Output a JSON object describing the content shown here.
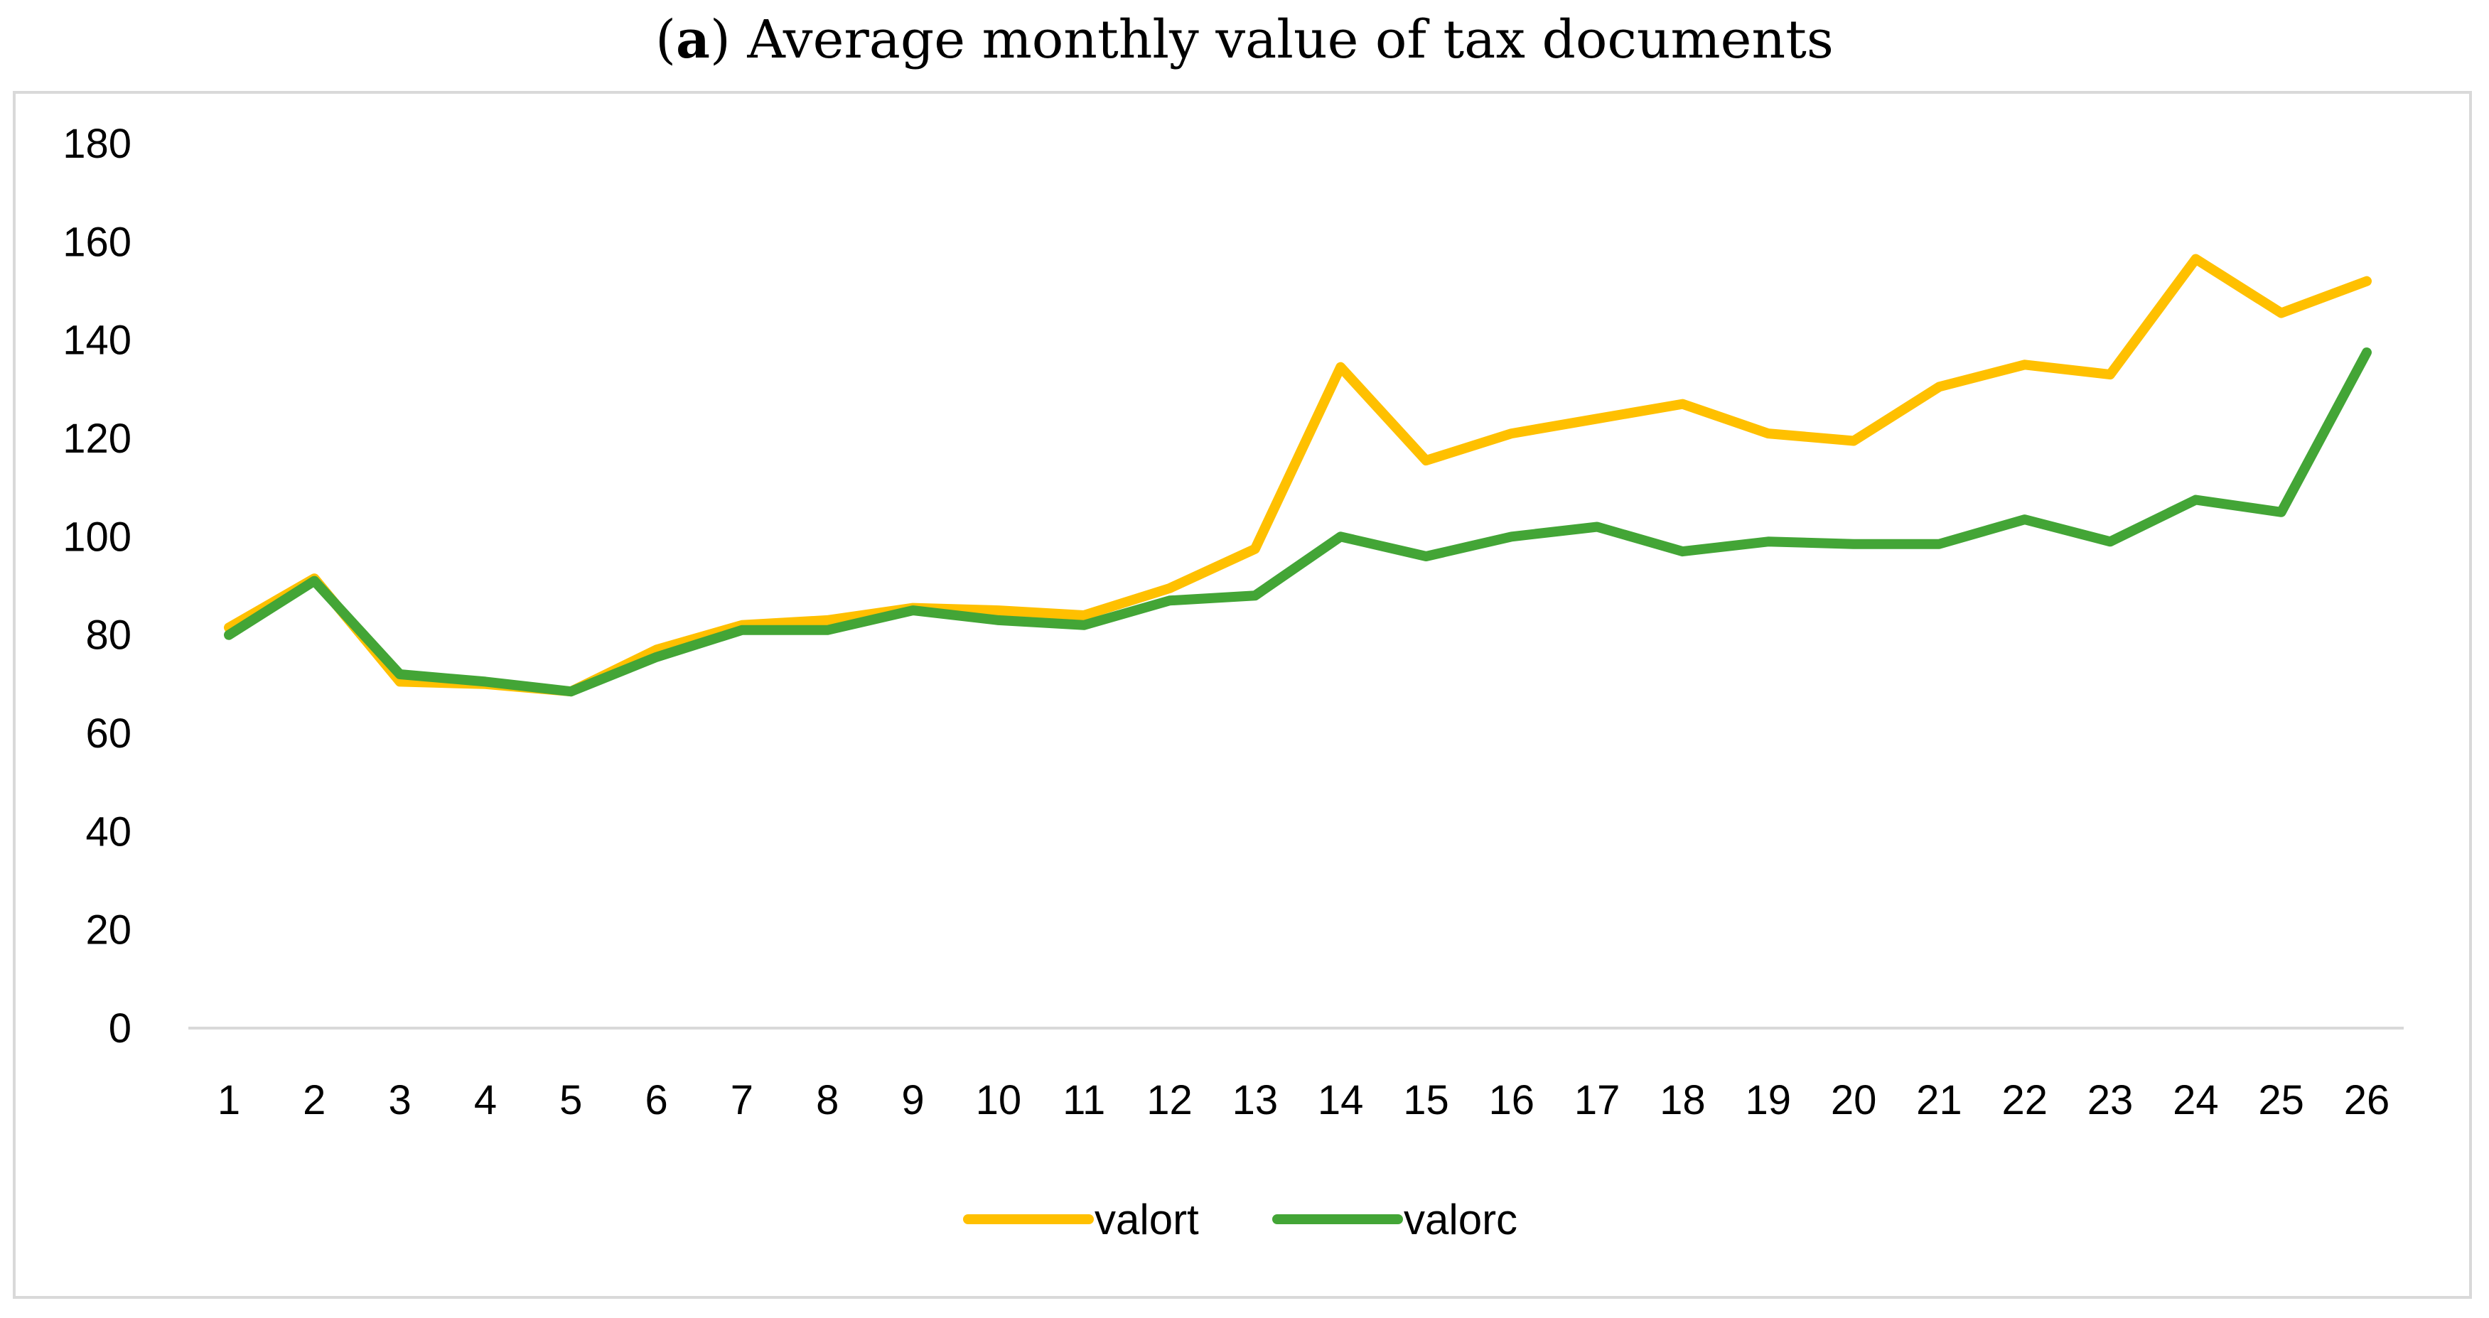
{
  "title": {
    "open_paren": "(",
    "letter": "a",
    "rest": ") Average monthly value of tax documents"
  },
  "chart_data": {
    "type": "line",
    "title": "(a) Average monthly value of tax documents",
    "xlabel": "",
    "ylabel": "",
    "categories": [
      "1",
      "2",
      "3",
      "4",
      "5",
      "6",
      "7",
      "8",
      "9",
      "10",
      "11",
      "12",
      "13",
      "14",
      "15",
      "16",
      "17",
      "18",
      "19",
      "20",
      "21",
      "22",
      "23",
      "24",
      "25",
      "26"
    ],
    "ylim": [
      0,
      180
    ],
    "yticks": [
      0,
      20,
      40,
      60,
      80,
      100,
      120,
      140,
      160,
      180
    ],
    "grid": false,
    "legend": "bottom-center",
    "series": [
      {
        "name": "valort",
        "color": "#FFC000",
        "values": [
          81.5,
          91.5,
          70.5,
          70,
          68.5,
          77,
          82,
          83,
          85.5,
          85,
          84,
          89.5,
          97.5,
          134.5,
          115.5,
          121,
          124,
          127,
          121,
          119.5,
          130.5,
          135,
          133,
          156.5,
          145.5,
          152
        ]
      },
      {
        "name": "valorc",
        "color": "#43A536",
        "values": [
          80,
          91,
          72,
          70.5,
          68.5,
          75.5,
          81,
          81,
          85,
          83,
          82,
          87,
          88,
          100,
          96,
          100,
          102,
          97,
          99,
          98.5,
          98.5,
          103.5,
          99,
          107.5,
          105,
          137.5
        ]
      }
    ]
  }
}
